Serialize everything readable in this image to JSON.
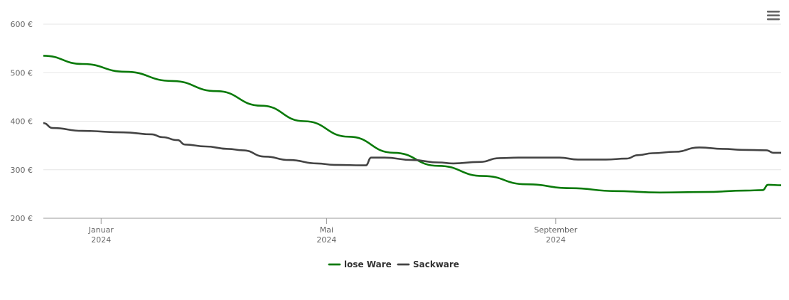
{
  "chart_data": {
    "type": "line",
    "title": "",
    "xlabel": "",
    "ylabel": "",
    "ylim": [
      200,
      600
    ],
    "yticks": [
      "200 €",
      "300 €",
      "400 €",
      "500 €",
      "600 €"
    ],
    "ytick_values": [
      200,
      300,
      400,
      500,
      600
    ],
    "xlim": [
      "2023-12-01",
      "2024-12-31"
    ],
    "xticks": [
      {
        "date": "2024-01-01",
        "label": "Januar",
        "sublabel": "2024"
      },
      {
        "date": "2024-05-01",
        "label": "Mai",
        "sublabel": "2024"
      },
      {
        "date": "2024-09-01",
        "label": "September",
        "sublabel": "2024"
      }
    ],
    "grid": true,
    "legend_position": "bottom-center",
    "series": [
      {
        "name": "lose Ware",
        "color": "#0a7a0a",
        "points": [
          [
            "2023-12-01",
            535
          ],
          [
            "2023-12-22",
            518
          ],
          [
            "2024-01-14",
            502
          ],
          [
            "2024-02-08",
            483
          ],
          [
            "2024-03-03",
            462
          ],
          [
            "2024-03-27",
            432
          ],
          [
            "2024-04-19",
            400
          ],
          [
            "2024-05-13",
            368
          ],
          [
            "2024-06-06",
            335
          ],
          [
            "2024-06-30",
            308
          ],
          [
            "2024-07-24",
            287
          ],
          [
            "2024-08-16",
            270
          ],
          [
            "2024-09-09",
            262
          ],
          [
            "2024-10-03",
            256
          ],
          [
            "2024-10-27",
            253
          ],
          [
            "2024-11-20",
            254
          ],
          [
            "2024-12-12",
            257
          ],
          [
            "2024-12-21",
            258
          ],
          [
            "2024-12-24",
            269
          ],
          [
            "2024-12-31",
            268
          ]
        ]
      },
      {
        "name": "Sackware",
        "color": "#444444",
        "points": [
          [
            "2023-12-01",
            396
          ],
          [
            "2023-12-06",
            386
          ],
          [
            "2023-12-22",
            380
          ],
          [
            "2024-01-13",
            377
          ],
          [
            "2024-01-28",
            373
          ],
          [
            "2024-02-03",
            367
          ],
          [
            "2024-02-11",
            361
          ],
          [
            "2024-02-15",
            352
          ],
          [
            "2024-02-26",
            348
          ],
          [
            "2024-03-09",
            343
          ],
          [
            "2024-03-17",
            340
          ],
          [
            "2024-03-29",
            327
          ],
          [
            "2024-04-11",
            320
          ],
          [
            "2024-04-26",
            313
          ],
          [
            "2024-05-05",
            310
          ],
          [
            "2024-05-22",
            309
          ],
          [
            "2024-05-25",
            325
          ],
          [
            "2024-06-01",
            325
          ],
          [
            "2024-06-16",
            320
          ],
          [
            "2024-06-30",
            315
          ],
          [
            "2024-07-08",
            313
          ],
          [
            "2024-07-22",
            316
          ],
          [
            "2024-08-02",
            324
          ],
          [
            "2024-08-12",
            325
          ],
          [
            "2024-09-03",
            325
          ],
          [
            "2024-09-13",
            321
          ],
          [
            "2024-09-28",
            321
          ],
          [
            "2024-10-09",
            323
          ],
          [
            "2024-10-15",
            330
          ],
          [
            "2024-10-23",
            334
          ],
          [
            "2024-11-04",
            337
          ],
          [
            "2024-11-17",
            346
          ],
          [
            "2024-11-30",
            343
          ],
          [
            "2024-12-10",
            341
          ],
          [
            "2024-12-23",
            340
          ],
          [
            "2024-12-27",
            335
          ],
          [
            "2024-12-31",
            335
          ]
        ]
      }
    ]
  }
}
